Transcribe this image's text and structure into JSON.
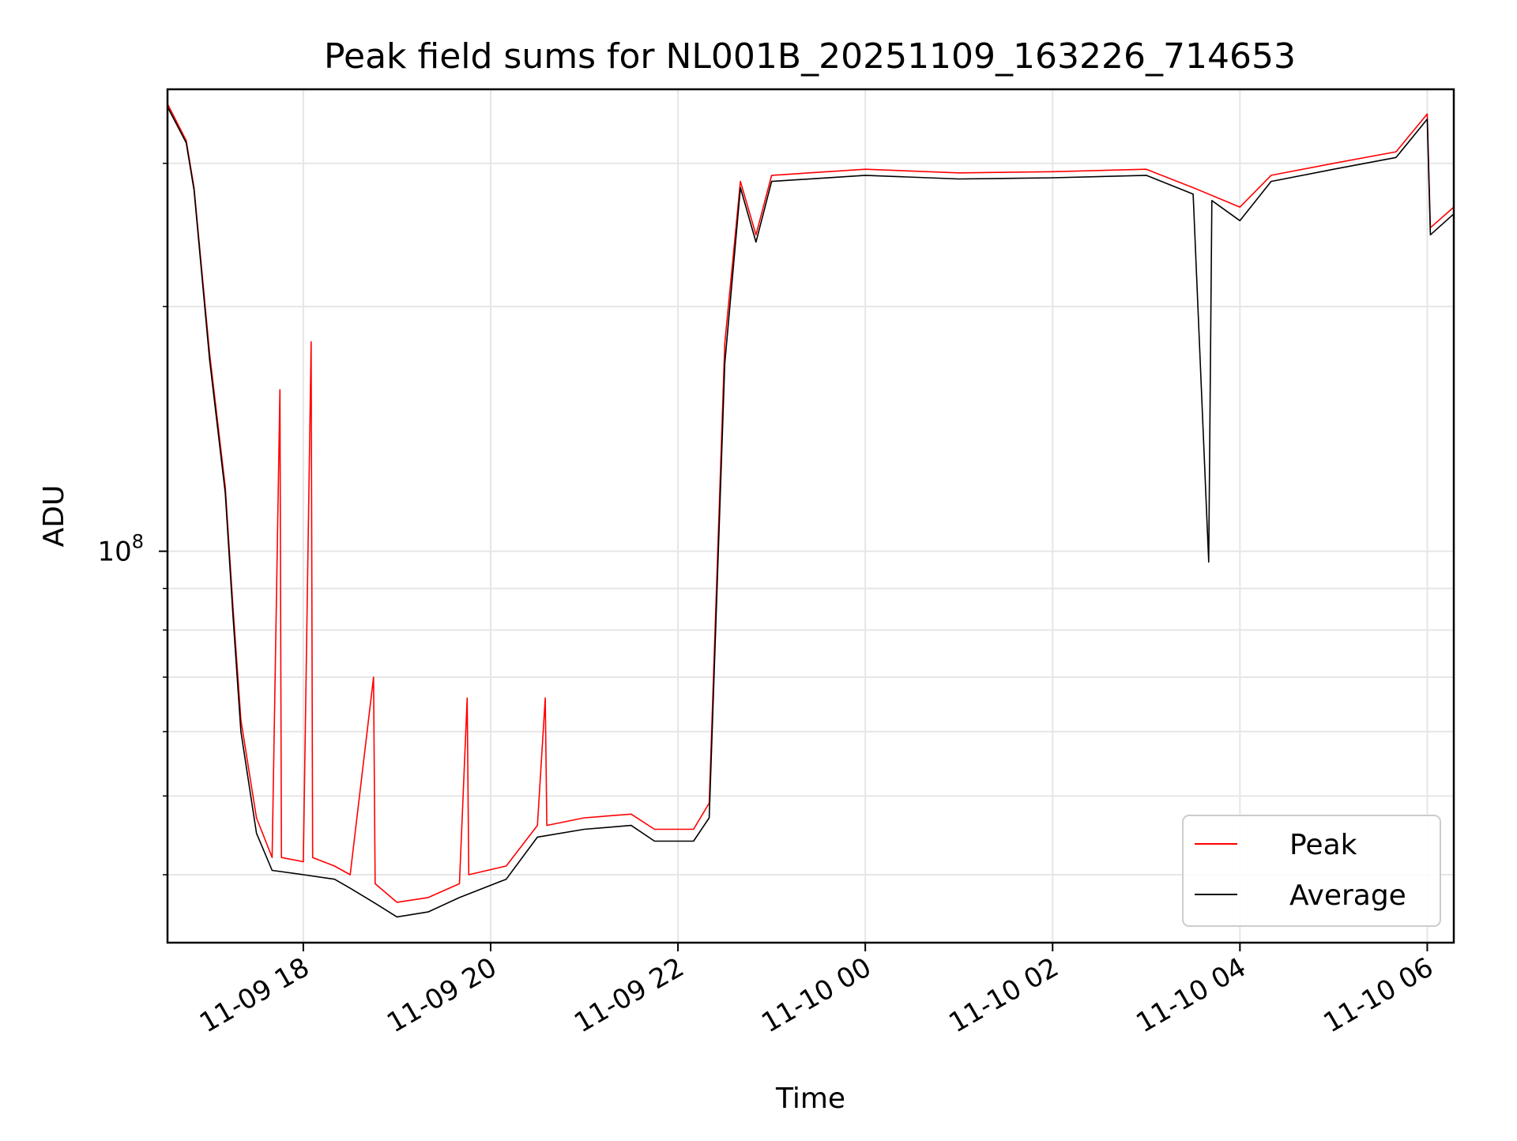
{
  "chart_data": {
    "type": "line",
    "title": "Peak field sums for NL001B_20251109_163226_714653",
    "xlabel": "Time",
    "ylabel": "ADU",
    "yscale": "log",
    "x_range": [
      "2025-11-09 16:33",
      "2025-11-10 06:17"
    ],
    "ylim": [
      33000000,
      370000000
    ],
    "grid": true,
    "legend_position": "lower-right",
    "x_ticks": [
      "11-09 18",
      "11-09 20",
      "11-09 22",
      "11-10 00",
      "11-10 02",
      "11-10 04",
      "11-10 06"
    ],
    "x_tick_times": [
      "2025-11-09 18:00",
      "2025-11-09 20:00",
      "2025-11-09 22:00",
      "2025-11-10 00:00",
      "2025-11-10 02:00",
      "2025-11-10 04:00",
      "2025-11-10 06:00"
    ],
    "y_ticks": [
      {
        "value": 100000000,
        "base": "10",
        "exp": "8"
      }
    ],
    "y_minor_ticks": [
      40000000,
      50000000,
      60000000,
      70000000,
      80000000,
      90000000,
      200000000,
      300000000
    ],
    "series": [
      {
        "name": "Peak",
        "color": "#ff0000",
        "points": [
          [
            "2025-11-09 16:33",
            355000000
          ],
          [
            "2025-11-09 16:45",
            320000000
          ],
          [
            "2025-11-09 16:50",
            280000000
          ],
          [
            "2025-11-09 17:00",
            175000000
          ],
          [
            "2025-11-09 17:10",
            120000000
          ],
          [
            "2025-11-09 17:15",
            85000000
          ],
          [
            "2025-11-09 17:20",
            62000000
          ],
          [
            "2025-11-09 17:30",
            47000000
          ],
          [
            "2025-11-09 17:40",
            42000000
          ],
          [
            "2025-11-09 17:45",
            158000000
          ],
          [
            "2025-11-09 17:46",
            42000000
          ],
          [
            "2025-11-09 18:00",
            41500000
          ],
          [
            "2025-11-09 18:05",
            181000000
          ],
          [
            "2025-11-09 18:06",
            42000000
          ],
          [
            "2025-11-09 18:20",
            41000000
          ],
          [
            "2025-11-09 18:30",
            40000000
          ],
          [
            "2025-11-09 18:45",
            70000000
          ],
          [
            "2025-11-09 18:46",
            39000000
          ],
          [
            "2025-11-09 19:00",
            37000000
          ],
          [
            "2025-11-09 19:20",
            37500000
          ],
          [
            "2025-11-09 19:40",
            39000000
          ],
          [
            "2025-11-09 19:45",
            66000000
          ],
          [
            "2025-11-09 19:46",
            40000000
          ],
          [
            "2025-11-09 20:10",
            41000000
          ],
          [
            "2025-11-09 20:30",
            46000000
          ],
          [
            "2025-11-09 20:35",
            66000000
          ],
          [
            "2025-11-09 20:36",
            46000000
          ],
          [
            "2025-11-09 21:00",
            47000000
          ],
          [
            "2025-11-09 21:30",
            47500000
          ],
          [
            "2025-11-09 21:45",
            45500000
          ],
          [
            "2025-11-09 22:10",
            45500000
          ],
          [
            "2025-11-09 22:20",
            49000000
          ],
          [
            "2025-11-09 22:30",
            180000000
          ],
          [
            "2025-11-09 22:40",
            285000000
          ],
          [
            "2025-11-09 22:50",
            245000000
          ],
          [
            "2025-11-09 23:00",
            290000000
          ],
          [
            "2025-11-10 00:00",
            295000000
          ],
          [
            "2025-11-10 01:00",
            292000000
          ],
          [
            "2025-11-10 02:00",
            293000000
          ],
          [
            "2025-11-10 03:00",
            295000000
          ],
          [
            "2025-11-10 03:30",
            280000000
          ],
          [
            "2025-11-10 04:00",
            265000000
          ],
          [
            "2025-11-10 04:20",
            290000000
          ],
          [
            "2025-11-10 05:00",
            300000000
          ],
          [
            "2025-11-10 05:40",
            310000000
          ],
          [
            "2025-11-10 06:00",
            345000000
          ],
          [
            "2025-11-10 06:02",
            250000000
          ],
          [
            "2025-11-10 06:17",
            265000000
          ]
        ]
      },
      {
        "name": "Average",
        "color": "#000000",
        "points": [
          [
            "2025-11-09 16:33",
            352000000
          ],
          [
            "2025-11-09 16:45",
            318000000
          ],
          [
            "2025-11-09 16:50",
            278000000
          ],
          [
            "2025-11-09 17:00",
            172000000
          ],
          [
            "2025-11-09 17:10",
            118000000
          ],
          [
            "2025-11-09 17:15",
            83000000
          ],
          [
            "2025-11-09 17:20",
            60000000
          ],
          [
            "2025-11-09 17:30",
            45000000
          ],
          [
            "2025-11-09 17:40",
            40500000
          ],
          [
            "2025-11-09 18:00",
            40000000
          ],
          [
            "2025-11-09 18:20",
            39500000
          ],
          [
            "2025-11-09 18:30",
            38500000
          ],
          [
            "2025-11-09 18:45",
            37000000
          ],
          [
            "2025-11-09 19:00",
            35500000
          ],
          [
            "2025-11-09 19:20",
            36000000
          ],
          [
            "2025-11-09 19:40",
            37500000
          ],
          [
            "2025-11-09 20:10",
            39500000
          ],
          [
            "2025-11-09 20:30",
            44500000
          ],
          [
            "2025-11-09 21:00",
            45500000
          ],
          [
            "2025-11-09 21:30",
            46000000
          ],
          [
            "2025-11-09 21:45",
            44000000
          ],
          [
            "2025-11-09 22:10",
            44000000
          ],
          [
            "2025-11-09 22:20",
            47000000
          ],
          [
            "2025-11-09 22:30",
            170000000
          ],
          [
            "2025-11-09 22:40",
            280000000
          ],
          [
            "2025-11-09 22:50",
            240000000
          ],
          [
            "2025-11-09 23:00",
            285000000
          ],
          [
            "2025-11-10 00:00",
            290000000
          ],
          [
            "2025-11-10 01:00",
            287000000
          ],
          [
            "2025-11-10 02:00",
            288000000
          ],
          [
            "2025-11-10 03:00",
            290000000
          ],
          [
            "2025-11-10 03:30",
            275000000
          ],
          [
            "2025-11-10 03:40",
            97000000
          ],
          [
            "2025-11-10 03:42",
            270000000
          ],
          [
            "2025-11-10 04:00",
            255000000
          ],
          [
            "2025-11-10 04:20",
            285000000
          ],
          [
            "2025-11-10 05:00",
            295000000
          ],
          [
            "2025-11-10 05:40",
            305000000
          ],
          [
            "2025-11-10 06:00",
            340000000
          ],
          [
            "2025-11-10 06:02",
            245000000
          ],
          [
            "2025-11-10 06:17",
            260000000
          ]
        ]
      }
    ]
  }
}
